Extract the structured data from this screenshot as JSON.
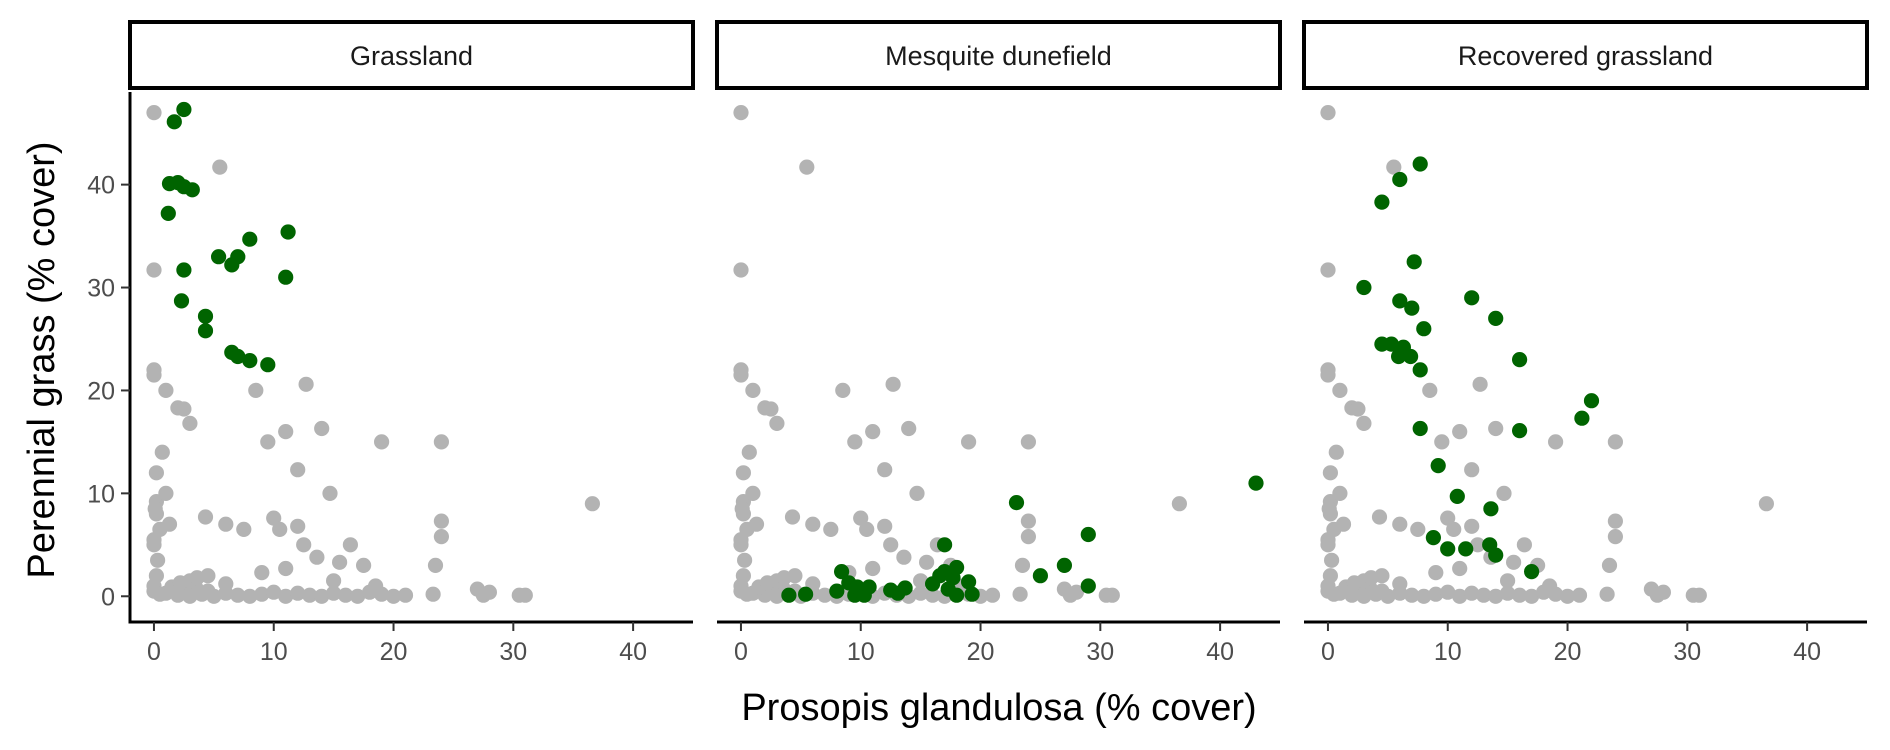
{
  "chart_data": {
    "type": "scatter",
    "xlabel": "Prosopis glandulosa (% cover)",
    "ylabel": "Perennial grass (% cover)",
    "xlim": [
      -2,
      45
    ],
    "ylim": [
      -2.5,
      49
    ],
    "x_ticks": [
      0,
      10,
      20,
      30,
      40
    ],
    "y_ticks": [
      0,
      10,
      20,
      30,
      40
    ],
    "grid": false,
    "legend": "none",
    "colors": {
      "background": "#b3b3b3",
      "highlight": "#006400"
    },
    "background_points": [
      [
        0,
        47
      ],
      [
        0,
        31.7
      ],
      [
        0,
        22
      ],
      [
        0,
        21.5
      ],
      [
        1,
        20
      ],
      [
        0.2,
        12
      ],
      [
        0.7,
        14
      ],
      [
        0.2,
        9.2
      ],
      [
        1,
        10
      ],
      [
        0.1,
        8.5
      ],
      [
        0.2,
        8
      ],
      [
        0.5,
        6.5
      ],
      [
        0,
        5.5
      ],
      [
        0,
        5
      ],
      [
        0.3,
        3.5
      ],
      [
        0.2,
        2
      ],
      [
        0,
        1
      ],
      [
        0,
        0.5
      ],
      [
        0.5,
        0.2
      ],
      [
        1,
        0.3
      ],
      [
        1.5,
        0.6
      ],
      [
        2,
        0.1
      ],
      [
        2.5,
        0.4
      ],
      [
        3,
        0
      ],
      [
        3.5,
        0.8
      ],
      [
        4,
        0.2
      ],
      [
        4.5,
        0.5
      ],
      [
        5,
        0
      ],
      [
        6,
        0.3
      ],
      [
        7,
        0.1
      ],
      [
        8,
        0
      ],
      [
        9,
        0.2
      ],
      [
        10,
        0.4
      ],
      [
        11,
        0
      ],
      [
        12,
        0.3
      ],
      [
        13,
        0.1
      ],
      [
        14,
        0
      ],
      [
        15,
        0.3
      ],
      [
        16,
        0.1
      ],
      [
        17,
        0
      ],
      [
        18,
        0.4
      ],
      [
        19,
        0.2
      ],
      [
        20,
        0
      ],
      [
        21,
        0.1
      ],
      [
        1.5,
        0.9
      ],
      [
        2.2,
        1.3
      ],
      [
        3,
        1.5
      ],
      [
        3.6,
        1.8
      ],
      [
        4.5,
        2
      ],
      [
        6,
        1.2
      ],
      [
        1.3,
        7
      ],
      [
        2,
        18.3
      ],
      [
        2.5,
        18.2
      ],
      [
        3,
        16.8
      ],
      [
        4.3,
        7.7
      ],
      [
        5.5,
        41.7
      ],
      [
        6,
        7
      ],
      [
        7.5,
        6.5
      ],
      [
        8.5,
        20
      ],
      [
        9,
        2.3
      ],
      [
        9.5,
        15
      ],
      [
        10,
        7.6
      ],
      [
        10.5,
        6.5
      ],
      [
        11,
        16
      ],
      [
        11,
        2.7
      ],
      [
        12,
        12.3
      ],
      [
        12,
        6.8
      ],
      [
        12.5,
        5
      ],
      [
        12.7,
        20.6
      ],
      [
        13.6,
        3.8
      ],
      [
        14,
        16.3
      ],
      [
        14.7,
        10
      ],
      [
        15,
        1.5
      ],
      [
        15.5,
        3.3
      ],
      [
        16.4,
        5
      ],
      [
        17.5,
        3
      ],
      [
        19,
        15
      ],
      [
        18.5,
        1
      ],
      [
        24,
        15
      ],
      [
        24,
        7.3
      ],
      [
        24,
        5.8
      ],
      [
        23.5,
        3
      ],
      [
        23.3,
        0.2
      ],
      [
        27,
        0.7
      ],
      [
        27.5,
        0.1
      ],
      [
        28,
        0.4
      ],
      [
        30.5,
        0.1
      ],
      [
        31,
        0.1
      ],
      [
        36.6,
        9
      ]
    ],
    "panels": [
      {
        "name": "Grassland",
        "highlight_points": [
          [
            1.7,
            46.1
          ],
          [
            2.5,
            47.3
          ],
          [
            1.3,
            40.1
          ],
          [
            2,
            40.2
          ],
          [
            2.5,
            39.8
          ],
          [
            3.2,
            39.5
          ],
          [
            1.2,
            37.2
          ],
          [
            2.5,
            31.7
          ],
          [
            2.3,
            28.7
          ],
          [
            4.3,
            27.2
          ],
          [
            4.3,
            25.8
          ],
          [
            5.4,
            33
          ],
          [
            6.5,
            32.2
          ],
          [
            7,
            33
          ],
          [
            8,
            34.7
          ],
          [
            11.2,
            35.4
          ],
          [
            11,
            31
          ],
          [
            6.5,
            23.7
          ],
          [
            7,
            23.3
          ],
          [
            8,
            22.9
          ],
          [
            9.5,
            22.5
          ]
        ]
      },
      {
        "name": "Mesquite dunefield",
        "highlight_points": [
          [
            4,
            0.1
          ],
          [
            5.4,
            0.2
          ],
          [
            8,
            0.5
          ],
          [
            8.4,
            2.4
          ],
          [
            9,
            1.3
          ],
          [
            9.5,
            0.1
          ],
          [
            9.7,
            0.9
          ],
          [
            10,
            0.5
          ],
          [
            10.3,
            0.1
          ],
          [
            10.7,
            0.9
          ],
          [
            12.5,
            0.6
          ],
          [
            13.1,
            0.3
          ],
          [
            13.7,
            0.8
          ],
          [
            16,
            1.2
          ],
          [
            16.6,
            2
          ],
          [
            17,
            5
          ],
          [
            17,
            2.4
          ],
          [
            17.3,
            0.7
          ],
          [
            17.7,
            1.8
          ],
          [
            18,
            0.1
          ],
          [
            18,
            2.8
          ],
          [
            19,
            1.4
          ],
          [
            19.3,
            0.2
          ],
          [
            23,
            9.1
          ],
          [
            25,
            2
          ],
          [
            27,
            3
          ],
          [
            29,
            6
          ],
          [
            29,
            1
          ],
          [
            43,
            11
          ]
        ]
      },
      {
        "name": "Recovered grassland",
        "highlight_points": [
          [
            3,
            30
          ],
          [
            4.5,
            38.3
          ],
          [
            6,
            40.5
          ],
          [
            7.7,
            42
          ],
          [
            7.2,
            32.5
          ],
          [
            6,
            28.7
          ],
          [
            7,
            28
          ],
          [
            4.5,
            24.5
          ],
          [
            5.3,
            24.5
          ],
          [
            5.9,
            23.3
          ],
          [
            6.3,
            24.2
          ],
          [
            6.9,
            23.3
          ],
          [
            8,
            26
          ],
          [
            7.7,
            22
          ],
          [
            7.7,
            16.3
          ],
          [
            9.2,
            12.7
          ],
          [
            10.8,
            9.7
          ],
          [
            8.8,
            5.7
          ],
          [
            10,
            4.6
          ],
          [
            11.5,
            4.6
          ],
          [
            13.5,
            5
          ],
          [
            13.6,
            8.5
          ],
          [
            14,
            4
          ],
          [
            17,
            2.4
          ],
          [
            12,
            29
          ],
          [
            14,
            27
          ],
          [
            16,
            23
          ],
          [
            16,
            16.1
          ],
          [
            21.2,
            17.3
          ],
          [
            22,
            19
          ]
        ]
      }
    ]
  }
}
